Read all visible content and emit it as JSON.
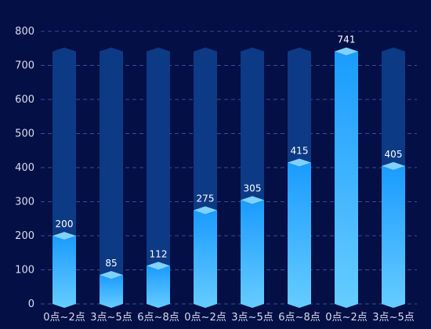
{
  "chart_data": {
    "type": "bar",
    "categories": [
      "0点~2点",
      "3点~5点",
      "6点~8点",
      "0点~2点",
      "3点~5点",
      "6点~8点",
      "0点~2点",
      "3点~5点"
    ],
    "values": [
      200,
      85,
      112,
      275,
      305,
      415,
      741,
      405
    ],
    "background_value": 741,
    "ylim": [
      0,
      800
    ],
    "yticks": [
      0,
      100,
      200,
      300,
      400,
      500,
      600,
      700,
      800
    ],
    "grid": true,
    "title": "",
    "xlabel": "",
    "ylabel": "",
    "colors": {
      "background": "#030f45",
      "track": "#0c3a85",
      "bar_top": "#1a9bff",
      "bar_bottom": "#66ccff",
      "cap": "#7fd1ff",
      "grid": "#3a4f8f",
      "text": "#d9def0"
    }
  }
}
